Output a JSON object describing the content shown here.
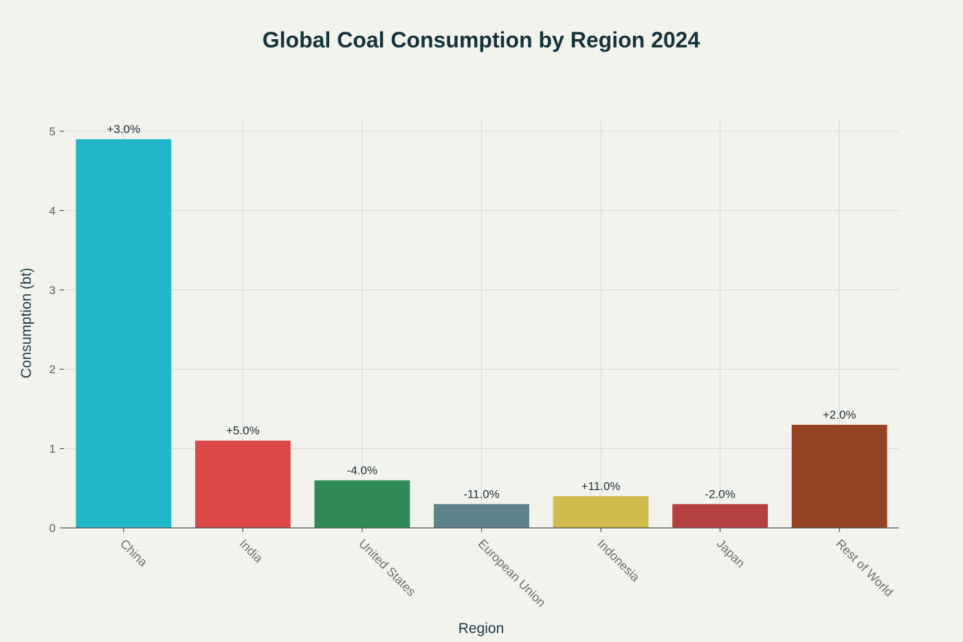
{
  "chart_data": {
    "type": "bar",
    "title": "Global Coal Consumption by Region 2024",
    "xlabel": "Region",
    "ylabel": "Consumption (bt)",
    "ylim": [
      0,
      5.15
    ],
    "yticks": [
      0,
      1,
      2,
      3,
      4,
      5
    ],
    "grid": true,
    "categories": [
      "China",
      "India",
      "United States",
      "European Union",
      "Indonesia",
      "Japan",
      "Rest of World"
    ],
    "values": [
      4.9,
      1.1,
      0.6,
      0.3,
      0.4,
      0.3,
      1.3
    ],
    "data_labels": [
      "+3.0%",
      "+5.0%",
      "-4.0%",
      "-11.0%",
      "+11.0%",
      "-2.0%",
      "+2.0%"
    ],
    "colors": [
      "#21b7cb",
      "#dc4747",
      "#2f8a57",
      "#5e8289",
      "#d3ba4c",
      "#b44040",
      "#944324"
    ]
  }
}
